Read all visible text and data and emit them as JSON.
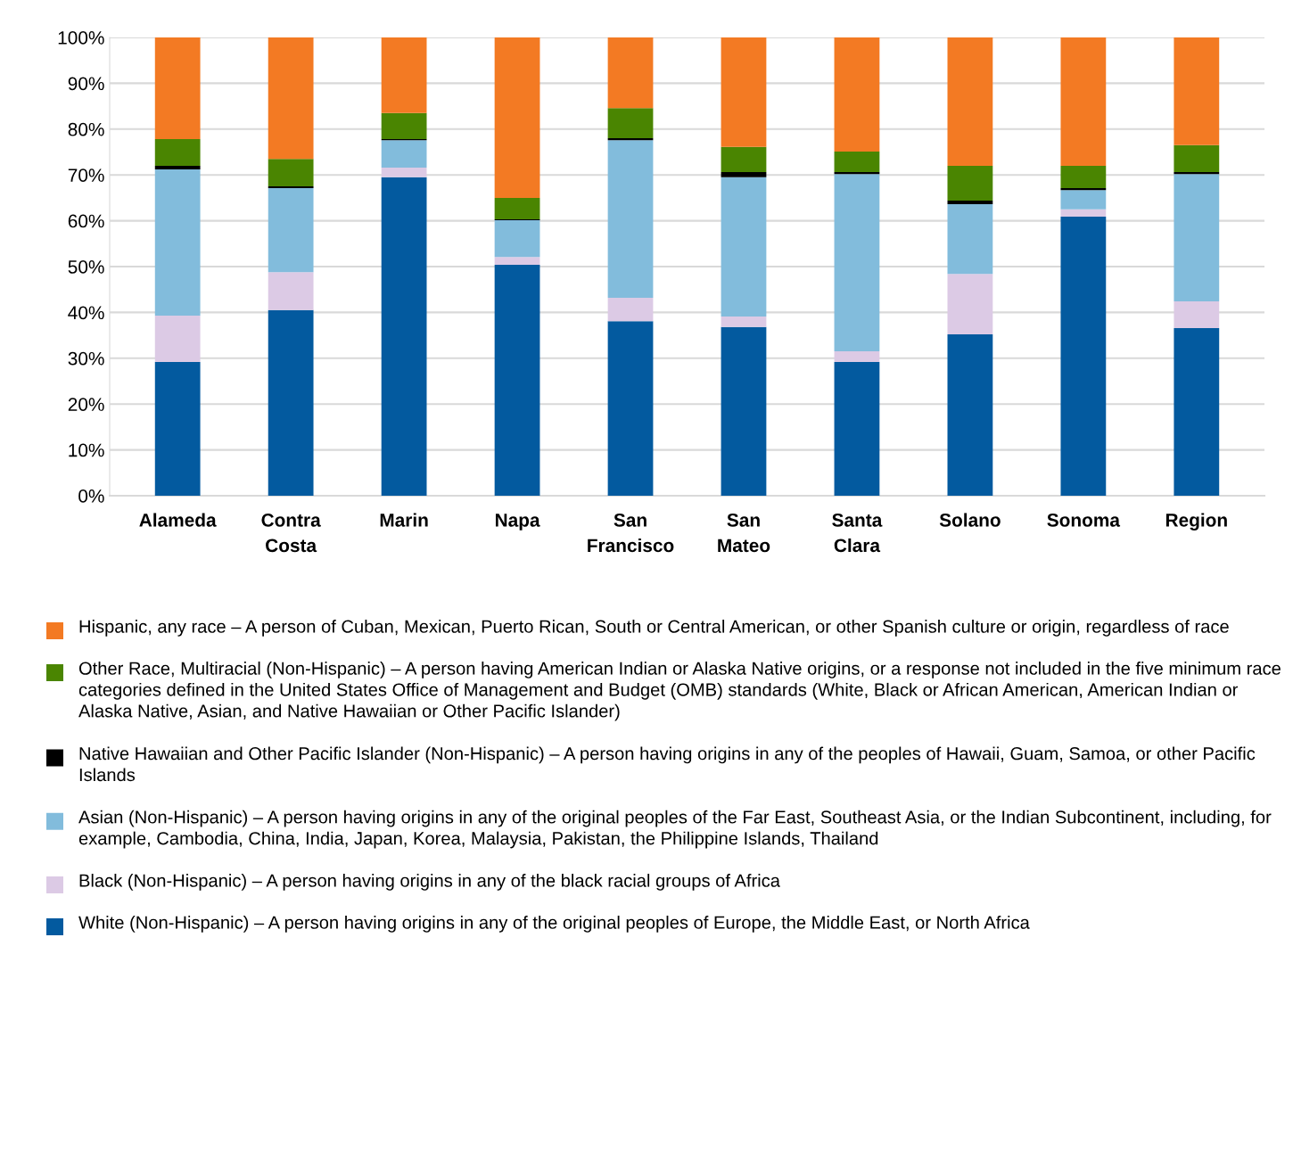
{
  "chart_data": {
    "type": "bar",
    "stacked": true,
    "categories": [
      "Alameda",
      "Contra Costa",
      "Marin",
      "Napa",
      "San Francisco",
      "San Mateo",
      "Santa Clara",
      "Solano",
      "Sonoma",
      "Region"
    ],
    "series": [
      {
        "name": "White (Non-Hispanic) – A person having origins in any of the original peoples of Europe, the Middle East, or North Africa",
        "color": "#035a9f",
        "values": [
          29.2,
          40.5,
          69.5,
          50.4,
          38.1,
          36.8,
          29.2,
          35.2,
          60.9,
          36.6
        ]
      },
      {
        "name": "Black (Non-Hispanic) – A person having origins in any of the black racial groups of Africa",
        "color": "#dccae5",
        "values": [
          10.1,
          8.3,
          2.1,
          1.7,
          5.1,
          2.3,
          2.3,
          13.2,
          1.6,
          5.8
        ]
      },
      {
        "name": "Asian (Non-Hispanic) – A person having origins in any of the original peoples of the Far East, Southeast Asia, or the Indian Subcontinent, including, for example, Cambodia, China, India, Japan, Korea, Malaysia, Pakistan, the Philippine Islands, Thailand",
        "color": "#82bcdc",
        "values": [
          31.9,
          18.3,
          6.0,
          8.0,
          34.4,
          30.4,
          38.7,
          15.2,
          4.2,
          27.8
        ]
      },
      {
        "name": "Native Hawaiian and Other Pacific Islander (Non-Hispanic) – A person having origins in any of the peoples of Hawaii, Guam, Samoa, or other Pacific Islands",
        "color": "#000000",
        "values": [
          0.8,
          0.4,
          0.2,
          0.2,
          0.4,
          1.1,
          0.4,
          0.8,
          0.4,
          0.4
        ]
      },
      {
        "name": "Other Race, Multiracial (Non-Hispanic) – A person having American Indian or Alaska Native origins, or a response not included in the five minimum race categories defined in the United States Office of Management and Budget (OMB) standards (White, Black or African American, American Indian or Alaska Native, Asian, and Native Hawaiian or Other Pacific Islander)",
        "color": "#4a8501",
        "values": [
          5.8,
          6.0,
          5.7,
          4.7,
          6.6,
          5.5,
          4.5,
          7.6,
          4.9,
          5.9
        ]
      },
      {
        "name": "Hispanic, any race – A person of Cuban, Mexican, Puerto Rican, South or Central American, or other Spanish culture or origin, regardless of race",
        "color": "#f37a23",
        "values": [
          22.2,
          26.5,
          16.5,
          35.0,
          15.4,
          23.9,
          24.9,
          28.0,
          28.0,
          23.5
        ]
      }
    ],
    "ylim": [
      0,
      100
    ],
    "yticks": [
      {
        "value": 0,
        "label": "0%"
      },
      {
        "value": 10,
        "label": "10%"
      },
      {
        "value": 20,
        "label": "20%"
      },
      {
        "value": 30,
        "label": "30%"
      },
      {
        "value": 40,
        "label": "40%"
      },
      {
        "value": 50,
        "label": "50%"
      },
      {
        "value": 60,
        "label": "60%"
      },
      {
        "value": 70,
        "label": "70%"
      },
      {
        "value": 80,
        "label": "80%"
      },
      {
        "value": 90,
        "label": "90%"
      },
      {
        "value": 100,
        "label": "100%"
      }
    ],
    "grid": "y",
    "legend": "bottom"
  }
}
